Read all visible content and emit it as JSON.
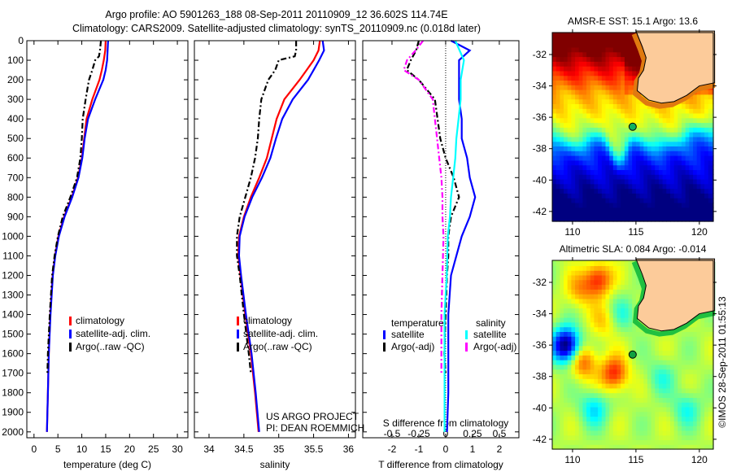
{
  "title": {
    "line1": "Argo profile: AO 5901263_188 08-Sep-2011 20110909_12 36.602S 114.74E",
    "line2": "Climatology: CARS2009. Satellite-adjusted climatology: synTS_20110909.nc (0.018d later)"
  },
  "colors": {
    "climatology": "#ff0000",
    "satellite": "#0000ff",
    "argo": "#000000",
    "sal_satellite": "#00ffff",
    "sal_argo": "#ff00ff",
    "land": "#fccb9a",
    "marker": "#00b050"
  },
  "chart_data": [
    {
      "type": "line",
      "id": "temperature",
      "xlabel": "temperature (deg C)",
      "ylabel": "",
      "xlim": [
        -1.5,
        32.2
      ],
      "ylim": [
        0,
        2030
      ],
      "xticks": [
        0,
        5,
        10,
        15,
        20,
        25,
        30
      ],
      "yticks": [
        0,
        100,
        200,
        300,
        400,
        500,
        600,
        700,
        800,
        900,
        1000,
        1100,
        1200,
        1300,
        1400,
        1500,
        1600,
        1700,
        1800,
        1900,
        2000
      ],
      "legend": [
        "climatology",
        "satellite-adj. clim.",
        "Argo(..raw -QC)"
      ],
      "series": [
        {
          "name": "climatology",
          "color": "#ff0000",
          "dash": false,
          "depth": [
            0,
            50,
            100,
            150,
            200,
            300,
            400,
            500,
            600,
            700,
            800,
            900,
            1000,
            1100,
            1200,
            1400,
            1600,
            1800,
            2000
          ],
          "values": [
            15.0,
            14.9,
            14.6,
            14.2,
            13.7,
            12.2,
            11.0,
            10.5,
            10.0,
            9.2,
            7.9,
            6.3,
            5.1,
            4.4,
            3.9,
            3.4,
            3.1,
            2.9,
            2.7
          ]
        },
        {
          "name": "satellite-adj. clim.",
          "color": "#0000ff",
          "dash": false,
          "depth": [
            0,
            50,
            100,
            150,
            200,
            300,
            400,
            500,
            600,
            700,
            800,
            900,
            1000,
            1100,
            1200,
            1400,
            1600,
            1800,
            2000
          ],
          "values": [
            15.5,
            15.4,
            15.3,
            15.0,
            14.5,
            12.8,
            11.3,
            10.6,
            10.1,
            9.3,
            8.0,
            6.4,
            5.2,
            4.45,
            3.95,
            3.45,
            3.1,
            2.9,
            2.7
          ]
        },
        {
          "name": "Argo(..raw -QC)",
          "color": "#000000",
          "dash": true,
          "depth": [
            0,
            50,
            80,
            100,
            150,
            200,
            300,
            400,
            500,
            600,
            700,
            800,
            900,
            1000,
            1100,
            1200,
            1400,
            1600,
            1700
          ],
          "values": [
            14.0,
            13.8,
            13.6,
            12.8,
            12.2,
            11.5,
            10.8,
            10.2,
            10.0,
            9.7,
            9.0,
            7.6,
            6.0,
            5.0,
            4.3,
            3.8,
            3.3,
            2.9,
            2.8
          ]
        }
      ]
    },
    {
      "type": "line",
      "id": "salinity",
      "xlabel": "salinity",
      "xlim": [
        33.79,
        36.1
      ],
      "ylim": [
        0,
        2030
      ],
      "xticks": [
        34,
        34.5,
        35,
        35.5,
        36
      ],
      "legend": [
        "climatology",
        "satellite-adj. clim.",
        "Argo(..raw -QC)"
      ],
      "annotations": [
        "US ARGO PROJECT",
        "PI: DEAN ROEMMICH"
      ],
      "series": [
        {
          "name": "climatology",
          "color": "#ff0000",
          "dash": false,
          "depth": [
            0,
            50,
            100,
            150,
            200,
            300,
            400,
            500,
            600,
            700,
            800,
            900,
            1000,
            1100,
            1200,
            1400,
            1600,
            1800,
            2000
          ],
          "values": [
            35.59,
            35.57,
            35.5,
            35.4,
            35.3,
            35.08,
            34.97,
            34.9,
            34.83,
            34.72,
            34.6,
            34.5,
            34.43,
            34.42,
            34.45,
            34.52,
            34.6,
            34.66,
            34.71
          ]
        },
        {
          "name": "satellite-adj. clim.",
          "color": "#0000ff",
          "dash": false,
          "depth": [
            0,
            50,
            100,
            150,
            200,
            300,
            400,
            500,
            600,
            700,
            800,
            900,
            1000,
            1100,
            1200,
            1400,
            1600,
            1800,
            2000
          ],
          "values": [
            35.63,
            35.65,
            35.58,
            35.5,
            35.42,
            35.2,
            35.05,
            34.96,
            34.88,
            34.76,
            34.62,
            34.51,
            34.44,
            34.43,
            34.46,
            34.53,
            34.61,
            34.67,
            34.72
          ]
        },
        {
          "name": "Argo(..raw -QC)",
          "color": "#000000",
          "dash": true,
          "depth": [
            0,
            50,
            80,
            100,
            150,
            200,
            300,
            400,
            500,
            600,
            700,
            800,
            900,
            1000,
            1100,
            1200,
            1400,
            1600,
            1700
          ],
          "values": [
            35.25,
            35.25,
            35.23,
            35.0,
            34.95,
            34.85,
            34.75,
            34.72,
            34.7,
            34.66,
            34.6,
            34.52,
            34.44,
            34.4,
            34.4,
            34.44,
            34.5,
            34.57,
            34.6
          ]
        }
      ]
    },
    {
      "type": "line",
      "id": "difference",
      "xlabel": "T difference from climatology",
      "x2label": "S difference from climatology",
      "xlim": [
        -3.09,
        2.73
      ],
      "ylim": [
        0,
        2030
      ],
      "xticks": [
        -2,
        -1,
        0,
        1,
        2
      ],
      "x2ticks": [
        "-0.5",
        "-0.25",
        "0",
        "0.25",
        "0.5"
      ],
      "x2tick_values": [
        -0.5,
        -0.25,
        0,
        0.25,
        0.5
      ],
      "s_to_t_scale": 4,
      "legend_groups": [
        {
          "title": "temperature",
          "items": [
            "satellite",
            "Argo(-adj)"
          ]
        },
        {
          "title": "salinity",
          "items": [
            "satellite",
            "Argo(-adj)"
          ]
        }
      ],
      "series": [
        {
          "name": "T satellite",
          "color": "#0000ff",
          "dash": false,
          "unit": "T",
          "depth": [
            0,
            50,
            100,
            200,
            300,
            400,
            500,
            600,
            700,
            800,
            900,
            1000,
            1100,
            1200,
            1400,
            1600,
            1800,
            2000
          ],
          "values": [
            0.2,
            0.9,
            0.5,
            0.5,
            0.5,
            0.6,
            0.6,
            0.8,
            0.9,
            1.1,
            0.9,
            0.6,
            0.4,
            0.2,
            0.1,
            0.1,
            0.1,
            0.05
          ]
        },
        {
          "name": "T Argo(-adj)",
          "color": "#000000",
          "dash": true,
          "unit": "T",
          "depth": [
            0,
            50,
            100,
            150,
            200,
            300,
            400,
            500,
            600,
            700,
            800,
            900,
            1000,
            1100,
            1200,
            1400,
            1600,
            1700
          ],
          "values": [
            -1.0,
            -1.1,
            -1.3,
            -1.45,
            -1.0,
            -0.4,
            -0.3,
            -0.2,
            0.0,
            0.3,
            0.5,
            0.2,
            0.1,
            0.1,
            0.05,
            0.0,
            -0.05,
            0.0
          ]
        },
        {
          "name": "S satellite",
          "color": "#00ffff",
          "dash": false,
          "unit": "S",
          "depth": [
            0,
            100,
            200,
            300,
            400,
            500,
            600,
            700,
            800,
            900,
            1000,
            1200,
            1400,
            2000
          ],
          "values": [
            0.09,
            0.17,
            0.14,
            0.14,
            0.12,
            0.1,
            0.09,
            0.07,
            0.05,
            0.04,
            0.02,
            0.01,
            -0.01,
            -0.01
          ]
        },
        {
          "name": "S Argo(-adj)",
          "color": "#ff00ff",
          "dash": true,
          "unit": "S",
          "depth": [
            0,
            50,
            100,
            150,
            200,
            300,
            400,
            500,
            600,
            700,
            800,
            900,
            1000,
            1200,
            1400,
            1600,
            1700
          ],
          "values": [
            -0.21,
            -0.28,
            -0.36,
            -0.39,
            -0.25,
            -0.12,
            -0.1,
            -0.08,
            -0.06,
            -0.04,
            -0.03,
            -0.03,
            -0.02,
            -0.03,
            -0.04,
            -0.04,
            -0.04
          ]
        }
      ]
    },
    {
      "type": "heatmap",
      "id": "sst-map",
      "title": "AMSR-E SST: 15.1 Argo: 13.6",
      "xlim": [
        108.4,
        121.1
      ],
      "ylim": [
        -42.63,
        -30.6
      ],
      "xticks": [
        110,
        115,
        120
      ],
      "yticks": [
        -32,
        -34,
        -36,
        -38,
        -40,
        -42
      ],
      "float_position": {
        "lon": 114.74,
        "lat": -36.602
      }
    },
    {
      "type": "heatmap",
      "id": "sla-map",
      "title": "Altimetric SLA: 0.084 Argo: -0.014",
      "xlim": [
        108.4,
        121.1
      ],
      "ylim": [
        -42.63,
        -30.6
      ],
      "xticks": [
        110,
        115,
        120
      ],
      "yticks": [
        -32,
        -34,
        -36,
        -38,
        -40,
        -42
      ],
      "float_position": {
        "lon": 114.74,
        "lat": -36.602
      }
    }
  ],
  "credit": "©IMOS 28-Sep-2011 01:55:13"
}
